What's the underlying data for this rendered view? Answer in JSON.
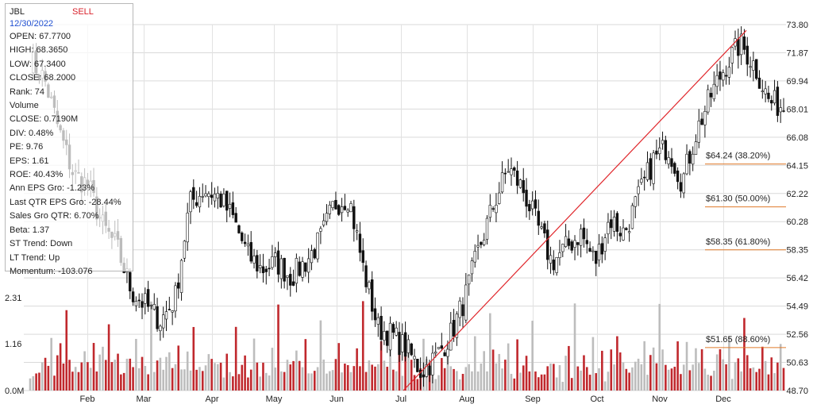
{
  "info_panel": {
    "ticker": "JBL",
    "signal": "SELL",
    "date": "12/30/2022",
    "rows": [
      "OPEN: 67.7700",
      "HIGH: 68.3650",
      "LOW: 67.3400",
      "CLOSE: 68.2000",
      "Rank: 74",
      "Volume",
      "CLOSE: 0.7190M",
      "DIV: 0.48%",
      "PE: 9.76",
      "EPS: 1.61",
      "ROE: 40.43%",
      "Ann EPS Gro: -1.23%",
      "Last QTR EPS Gro: -28.44%",
      "Sales Gro QTR: 6.70%",
      "Beta: 1.37",
      "ST Trend: Down",
      "LT Trend: Up",
      "Momentum: -103.076"
    ]
  },
  "chart_data": {
    "type": "candlestick",
    "price_axis": {
      "labels": [
        "73.80",
        "71.87",
        "69.94",
        "68.01",
        "66.08",
        "64.15",
        "62.22",
        "60.28",
        "58.35",
        "56.42",
        "54.49",
        "52.56",
        "50.63",
        "48.70"
      ],
      "ylim": [
        48.7,
        73.8
      ],
      "side": "right"
    },
    "volume_axis": {
      "labels": [
        "2.31",
        "1.16",
        "0.0M"
      ],
      "values": [
        2.31,
        1.16,
        0.0
      ],
      "side": "left"
    },
    "x_axis": {
      "months": [
        "Feb",
        "Mar",
        "Apr",
        "May",
        "Jun",
        "Jul",
        "Aug",
        "Sep",
        "Oct",
        "Nov",
        "Dec"
      ]
    },
    "fib_levels": [
      {
        "price": 64.24,
        "label": "$64.24 (38.20%)"
      },
      {
        "price": 61.3,
        "label": "$61.30 (50.00%)"
      },
      {
        "price": 58.35,
        "label": "$58.35 (61.80%)"
      },
      {
        "price": 51.65,
        "label": "$51.65 (88.60%)"
      }
    ],
    "trend_line": {
      "from": {
        "x": "Jul",
        "price": 48.7
      },
      "to": {
        "x": "Dec",
        "price": 73.4
      }
    },
    "series_anchor_closes": [
      [
        "Jan",
        71.5
      ],
      [
        "Jan",
        70.0
      ],
      [
        "Jan",
        66.5
      ],
      [
        "Jan",
        63.5
      ],
      [
        "Feb",
        62.8
      ],
      [
        "Feb",
        60.0
      ],
      [
        "Feb",
        58.5
      ],
      [
        "Feb",
        55.5
      ],
      [
        "Mar",
        54.5
      ],
      [
        "Mar",
        53.5
      ],
      [
        "Mar",
        55.0
      ],
      [
        "Mar",
        61.5
      ],
      [
        "Apr",
        62.5
      ],
      [
        "Apr",
        62.0
      ],
      [
        "Apr",
        60.5
      ],
      [
        "Apr",
        58.0
      ],
      [
        "May",
        57.0
      ],
      [
        "May",
        57.5
      ],
      [
        "May",
        56.5
      ],
      [
        "May",
        57.5
      ],
      [
        "Jun",
        59.0
      ],
      [
        "Jun",
        61.5
      ],
      [
        "Jun",
        62.0
      ],
      [
        "Jun",
        57.0
      ],
      [
        "Jun",
        53.0
      ],
      [
        "Jun",
        52.5
      ],
      [
        "Jul",
        51.5
      ],
      [
        "Jul",
        50.0
      ],
      [
        "Jul",
        51.0
      ],
      [
        "Jul",
        52.5
      ],
      [
        "Aug",
        55.0
      ],
      [
        "Aug",
        58.5
      ],
      [
        "Aug",
        61.5
      ],
      [
        "Aug",
        64.0
      ],
      [
        "Aug",
        62.5
      ],
      [
        "Sep",
        60.0
      ],
      [
        "Sep",
        57.5
      ],
      [
        "Sep",
        58.5
      ],
      [
        "Sep",
        59.5
      ],
      [
        "Oct",
        57.5
      ],
      [
        "Oct",
        60.5
      ],
      [
        "Oct",
        59.5
      ],
      [
        "Oct",
        62.0
      ],
      [
        "Oct",
        64.5
      ],
      [
        "Nov",
        65.5
      ],
      [
        "Nov",
        63.0
      ],
      [
        "Nov",
        66.5
      ],
      [
        "Nov",
        69.0
      ],
      [
        "Dec",
        71.0
      ],
      [
        "Dec",
        72.5
      ],
      [
        "Dec",
        71.0
      ],
      [
        "Dec",
        68.5
      ],
      [
        "Dec",
        68.2
      ]
    ],
    "volume_sample": [
      0.72,
      0.85,
      0.61,
      0.93,
      1.22,
      0.78,
      0.65,
      1.4,
      0.52,
      0.88,
      1.1,
      0.7,
      2.31,
      0.95
    ]
  }
}
